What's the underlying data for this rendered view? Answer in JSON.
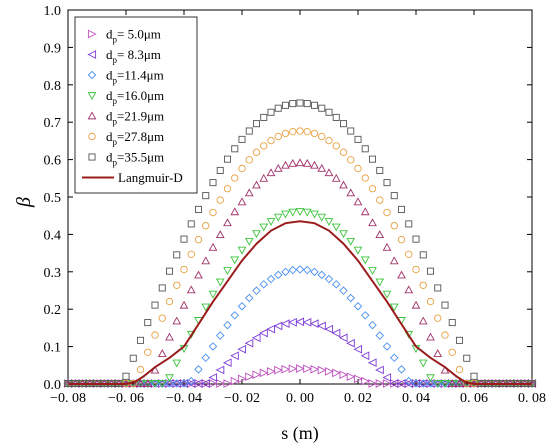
{
  "chart_data": {
    "type": "scatter",
    "xlabel": "s (m)",
    "ylabel": "β",
    "xlim": [
      -0.08,
      0.08
    ],
    "ylim": [
      0,
      1.0
    ],
    "xticks": [
      -0.08,
      -0.06,
      -0.04,
      -0.02,
      0.0,
      0.02,
      0.04,
      0.06,
      0.08
    ],
    "xtick_labels": [
      "−0. 08",
      "−0. 06",
      "−0. 04",
      "−0. 02",
      "0. 00",
      "0. 02",
      "0. 04",
      "0. 06",
      "0. 08"
    ],
    "yticks": [
      0,
      0.1,
      0.2,
      0.3,
      0.4,
      0.5,
      0.6,
      0.7,
      0.8,
      0.9,
      1.0
    ],
    "ytick_labels": [
      "0.0",
      "0.1",
      "0.2",
      "0.3",
      "0.4",
      "0.5",
      "0.6",
      "0.7",
      "0.8",
      "0.9",
      "1.0"
    ],
    "legend_position": "top-left",
    "series": [
      {
        "name": "dp= 5.0μm",
        "label_main": "d",
        "label_sub": "p",
        "label_rest": "= 5.0μm",
        "marker": "triangle-right",
        "color": "#c050c0",
        "peak": 0.04,
        "halfwidth": 0.025
      },
      {
        "name": "dp= 8.3μm",
        "label_main": "d",
        "label_sub": "p",
        "label_rest": "= 8.3μm",
        "marker": "triangle-left",
        "color": "#7a3ad6",
        "peak": 0.165,
        "halfwidth": 0.032
      },
      {
        "name": "dp=11.4μm",
        "label_main": "d",
        "label_sub": "p",
        "label_rest": "=11.4μm",
        "marker": "diamond",
        "color": "#4a90f0",
        "peak": 0.305,
        "halfwidth": 0.038
      },
      {
        "name": "dp=16.0μm",
        "label_main": "d",
        "label_sub": "p",
        "label_rest": "=16.0μm",
        "marker": "triangle-down",
        "color": "#3cc43c",
        "peak": 0.46,
        "halfwidth": 0.046
      },
      {
        "name": "dp=21.9μm",
        "label_main": "d",
        "label_sub": "p",
        "label_rest": "=21.9μm",
        "marker": "triangle-up",
        "color": "#a0306a",
        "peak": 0.59,
        "halfwidth": 0.052
      },
      {
        "name": "dp=27.8μm",
        "label_main": "d",
        "label_sub": "p",
        "label_rest": "=27.8μm",
        "marker": "circle",
        "color": "#e8a040",
        "peak": 0.675,
        "halfwidth": 0.057
      },
      {
        "name": "dp=35.5μm",
        "label_main": "d",
        "label_sub": "p",
        "label_rest": "=35.5μm",
        "marker": "square",
        "color": "#555555",
        "peak": 0.75,
        "halfwidth": 0.061
      }
    ],
    "curve": {
      "name": "Langmuir-D",
      "color": "#9b1c1c",
      "x": [
        -0.08,
        -0.06,
        -0.057,
        -0.054,
        -0.05,
        -0.045,
        -0.04,
        -0.035,
        -0.03,
        -0.025,
        -0.02,
        -0.015,
        -0.01,
        -0.005,
        0.0,
        0.005,
        0.01,
        0.015,
        0.02,
        0.025,
        0.03,
        0.035,
        0.04,
        0.045,
        0.05,
        0.054,
        0.057,
        0.06,
        0.08
      ],
      "y": [
        0.0,
        0.0,
        0.005,
        0.02,
        0.045,
        0.07,
        0.1,
        0.16,
        0.22,
        0.275,
        0.33,
        0.375,
        0.41,
        0.43,
        0.435,
        0.43,
        0.41,
        0.375,
        0.33,
        0.275,
        0.22,
        0.16,
        0.1,
        0.07,
        0.045,
        0.02,
        0.005,
        0.0,
        0.0
      ]
    }
  }
}
